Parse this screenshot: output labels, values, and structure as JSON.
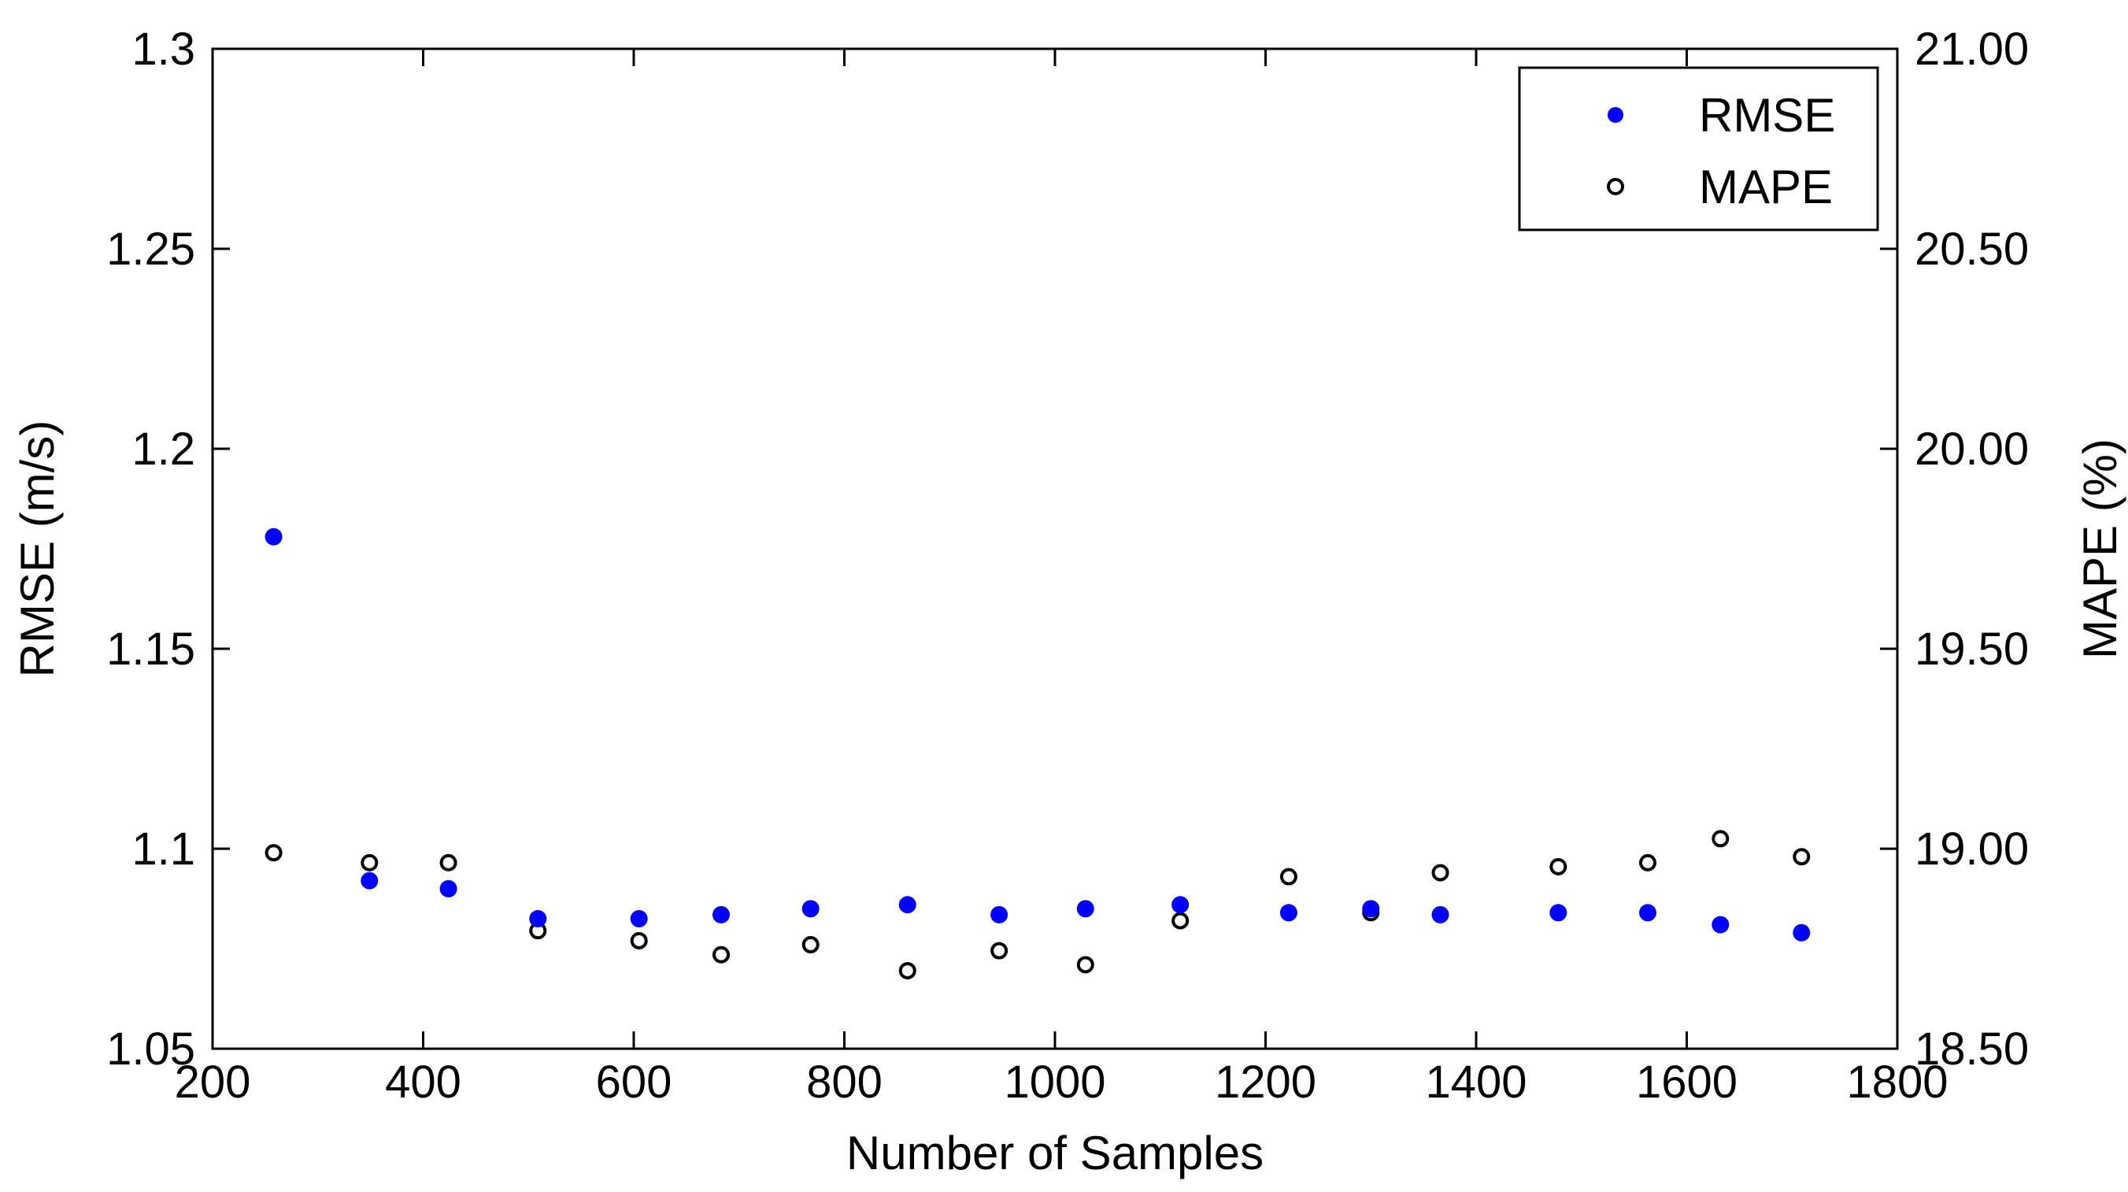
{
  "chart_data": {
    "type": "scatter",
    "xlabel": "Number of Samples",
    "ylabel_left": "RMSE (m/s)",
    "ylabel_right": "MAPE (%)",
    "xlim": [
      200,
      1800
    ],
    "ylim_left": [
      1.05,
      1.3
    ],
    "ylim_right": [
      18.5,
      21.0
    ],
    "x_ticks": [
      "200",
      "400",
      "600",
      "800",
      "1000",
      "1200",
      "1400",
      "1600",
      "1800"
    ],
    "y_left_ticks": [
      "1.05",
      "1.1",
      "1.15",
      "1.2",
      "1.25",
      "1.3"
    ],
    "y_right_ticks": [
      "18.50",
      "19.00",
      "19.50",
      "20.00",
      "20.50",
      "21.00"
    ],
    "grid": false,
    "legend_position": "top-right",
    "colors": {
      "rmse": "#0000ff",
      "mape": "#000000"
    },
    "series": [
      {
        "name": "RMSE",
        "axis": "left",
        "marker": "filled-circle",
        "x": [
          258,
          349,
          424,
          509,
          605,
          683,
          768,
          860,
          947,
          1029,
          1119,
          1222,
          1300,
          1366,
          1478,
          1563,
          1632,
          1709
        ],
        "y": [
          1.178,
          1.092,
          1.09,
          1.0825,
          1.0825,
          1.0835,
          1.085,
          1.086,
          1.0835,
          1.085,
          1.086,
          1.084,
          1.085,
          1.0835,
          1.084,
          1.084,
          1.081,
          1.079
        ]
      },
      {
        "name": "MAPE",
        "axis": "right",
        "marker": "open-circle",
        "x": [
          258,
          349,
          424,
          509,
          605,
          683,
          768,
          860,
          947,
          1029,
          1119,
          1222,
          1300,
          1366,
          1478,
          1563,
          1632,
          1709
        ],
        "y": [
          18.99,
          18.965,
          18.965,
          18.795,
          18.77,
          18.735,
          18.76,
          18.695,
          18.745,
          18.71,
          18.82,
          18.93,
          18.84,
          18.94,
          18.955,
          18.965,
          19.025,
          18.98
        ]
      }
    ]
  }
}
